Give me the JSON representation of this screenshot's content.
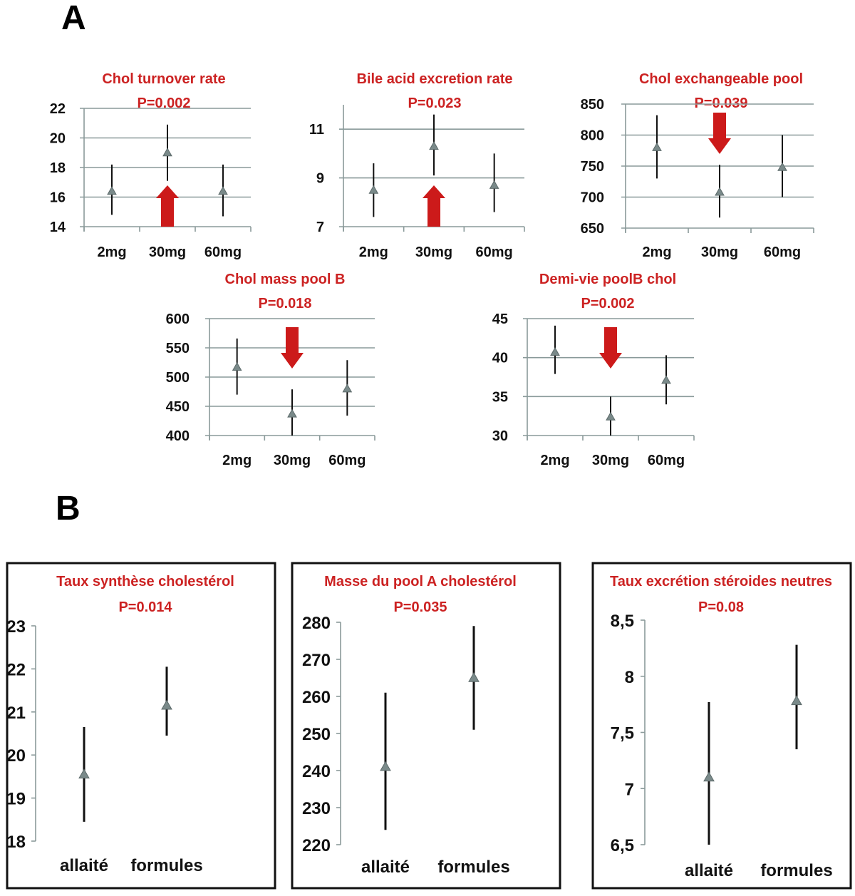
{
  "panels": {
    "a": "A",
    "b": "B"
  },
  "chart_data": [
    {
      "type": "scatter",
      "panel": "A",
      "title": "Chol turnover rate",
      "subtitle": "P=0.002",
      "categories": [
        "2mg",
        "30mg",
        "60mg"
      ],
      "ylim": [
        14,
        22
      ],
      "yticks": [
        "22",
        "20",
        "18",
        "16",
        "14"
      ],
      "ytick_values": [
        22,
        20,
        18,
        16,
        14
      ],
      "series": [
        {
          "name": "mean",
          "values": [
            16.4,
            19.0,
            16.4
          ],
          "lower": [
            14.8,
            17.1,
            14.7
          ],
          "upper": [
            18.2,
            20.9,
            18.2
          ]
        }
      ],
      "annotation": {
        "arrow": "up",
        "category": "30mg"
      }
    },
    {
      "type": "scatter",
      "panel": "A",
      "title": "Bile acid excretion rate",
      "subtitle": "P=0.023",
      "categories": [
        "2mg",
        "30mg",
        "60mg"
      ],
      "ylim": [
        7,
        12
      ],
      "yticks": [
        "11",
        "9",
        "7"
      ],
      "ytick_values": [
        11,
        9,
        7
      ],
      "series": [
        {
          "name": "mean",
          "values": [
            8.5,
            10.3,
            8.7
          ],
          "lower": [
            7.4,
            9.1,
            7.6
          ],
          "upper": [
            9.6,
            11.6,
            10.0
          ]
        }
      ],
      "annotation": {
        "arrow": "up",
        "category": "30mg"
      }
    },
    {
      "type": "scatter",
      "panel": "A",
      "title": "Chol exchangeable pool",
      "subtitle": "P=0.039",
      "categories": [
        "2mg",
        "30mg",
        "60mg"
      ],
      "ylim": [
        650,
        850
      ],
      "yticks": [
        "850",
        "800",
        "750",
        "700",
        "650"
      ],
      "ytick_values": [
        850,
        800,
        750,
        700,
        650
      ],
      "series": [
        {
          "name": "mean",
          "values": [
            780,
            708,
            748
          ],
          "lower": [
            730,
            667,
            700
          ],
          "upper": [
            832,
            752,
            800
          ]
        }
      ],
      "annotation": {
        "arrow": "down",
        "category": "30mg"
      }
    },
    {
      "type": "scatter",
      "panel": "A",
      "title": "Chol mass pool B",
      "subtitle": "P=0.018",
      "categories": [
        "2mg",
        "30mg",
        "60mg"
      ],
      "ylim": [
        400,
        600
      ],
      "yticks": [
        "600",
        "550",
        "500",
        "450",
        "400"
      ],
      "ytick_values": [
        600,
        550,
        500,
        450,
        400
      ],
      "series": [
        {
          "name": "mean",
          "values": [
            517,
            437,
            480
          ],
          "lower": [
            470,
            400,
            434
          ],
          "upper": [
            566,
            479,
            529
          ]
        }
      ],
      "annotation": {
        "arrow": "down",
        "category": "30mg"
      }
    },
    {
      "type": "scatter",
      "panel": "A",
      "title": "Demi-vie poolB chol",
      "subtitle": "P=0.002",
      "categories": [
        "2mg",
        "30mg",
        "60mg"
      ],
      "ylim": [
        30,
        45
      ],
      "yticks": [
        "45",
        "40",
        "35",
        "30"
      ],
      "ytick_values": [
        45,
        40,
        35,
        30
      ],
      "series": [
        {
          "name": "mean",
          "values": [
            40.7,
            32.4,
            37.1
          ],
          "lower": [
            37.9,
            30.0,
            34.0
          ],
          "upper": [
            44.1,
            35.0,
            40.3
          ]
        }
      ],
      "annotation": {
        "arrow": "down",
        "category": "30mg"
      }
    },
    {
      "type": "scatter",
      "panel": "B",
      "title": "Taux synthèse cholestérol",
      "subtitle": "P=0.014",
      "categories": [
        "allaité",
        "formules"
      ],
      "ylim": [
        18,
        23
      ],
      "yticks": [
        "23",
        "22",
        "21",
        "20",
        "19",
        "18"
      ],
      "ytick_values": [
        23,
        22,
        21,
        20,
        19,
        18
      ],
      "series": [
        {
          "name": "mean",
          "values": [
            19.55,
            21.15
          ],
          "lower": [
            18.45,
            20.45
          ],
          "upper": [
            20.65,
            22.05
          ]
        }
      ]
    },
    {
      "type": "scatter",
      "panel": "B",
      "title": "Masse du pool A cholestérol",
      "subtitle": "P=0.035",
      "categories": [
        "allaité",
        "formules"
      ],
      "ylim": [
        220,
        280
      ],
      "yticks": [
        "280",
        "270",
        "260",
        "250",
        "240",
        "230",
        "220"
      ],
      "ytick_values": [
        280,
        270,
        260,
        250,
        240,
        230,
        220
      ],
      "series": [
        {
          "name": "mean",
          "values": [
            241,
            265
          ],
          "lower": [
            224,
            251
          ],
          "upper": [
            261,
            279
          ]
        }
      ]
    },
    {
      "type": "scatter",
      "panel": "B",
      "title": "Taux excrétion stéroides neutres",
      "subtitle": "P=0.08",
      "categories": [
        "allaité",
        "formules"
      ],
      "ylim": [
        6.5,
        8.5
      ],
      "yticks": [
        "8,5",
        "8",
        "7,5",
        "7",
        "6,5"
      ],
      "ytick_values": [
        8.5,
        8,
        7.5,
        7,
        6.5
      ],
      "series": [
        {
          "name": "mean",
          "values": [
            7.1,
            7.78
          ],
          "lower": [
            6.5,
            7.35
          ],
          "upper": [
            7.77,
            8.28
          ]
        }
      ]
    }
  ]
}
